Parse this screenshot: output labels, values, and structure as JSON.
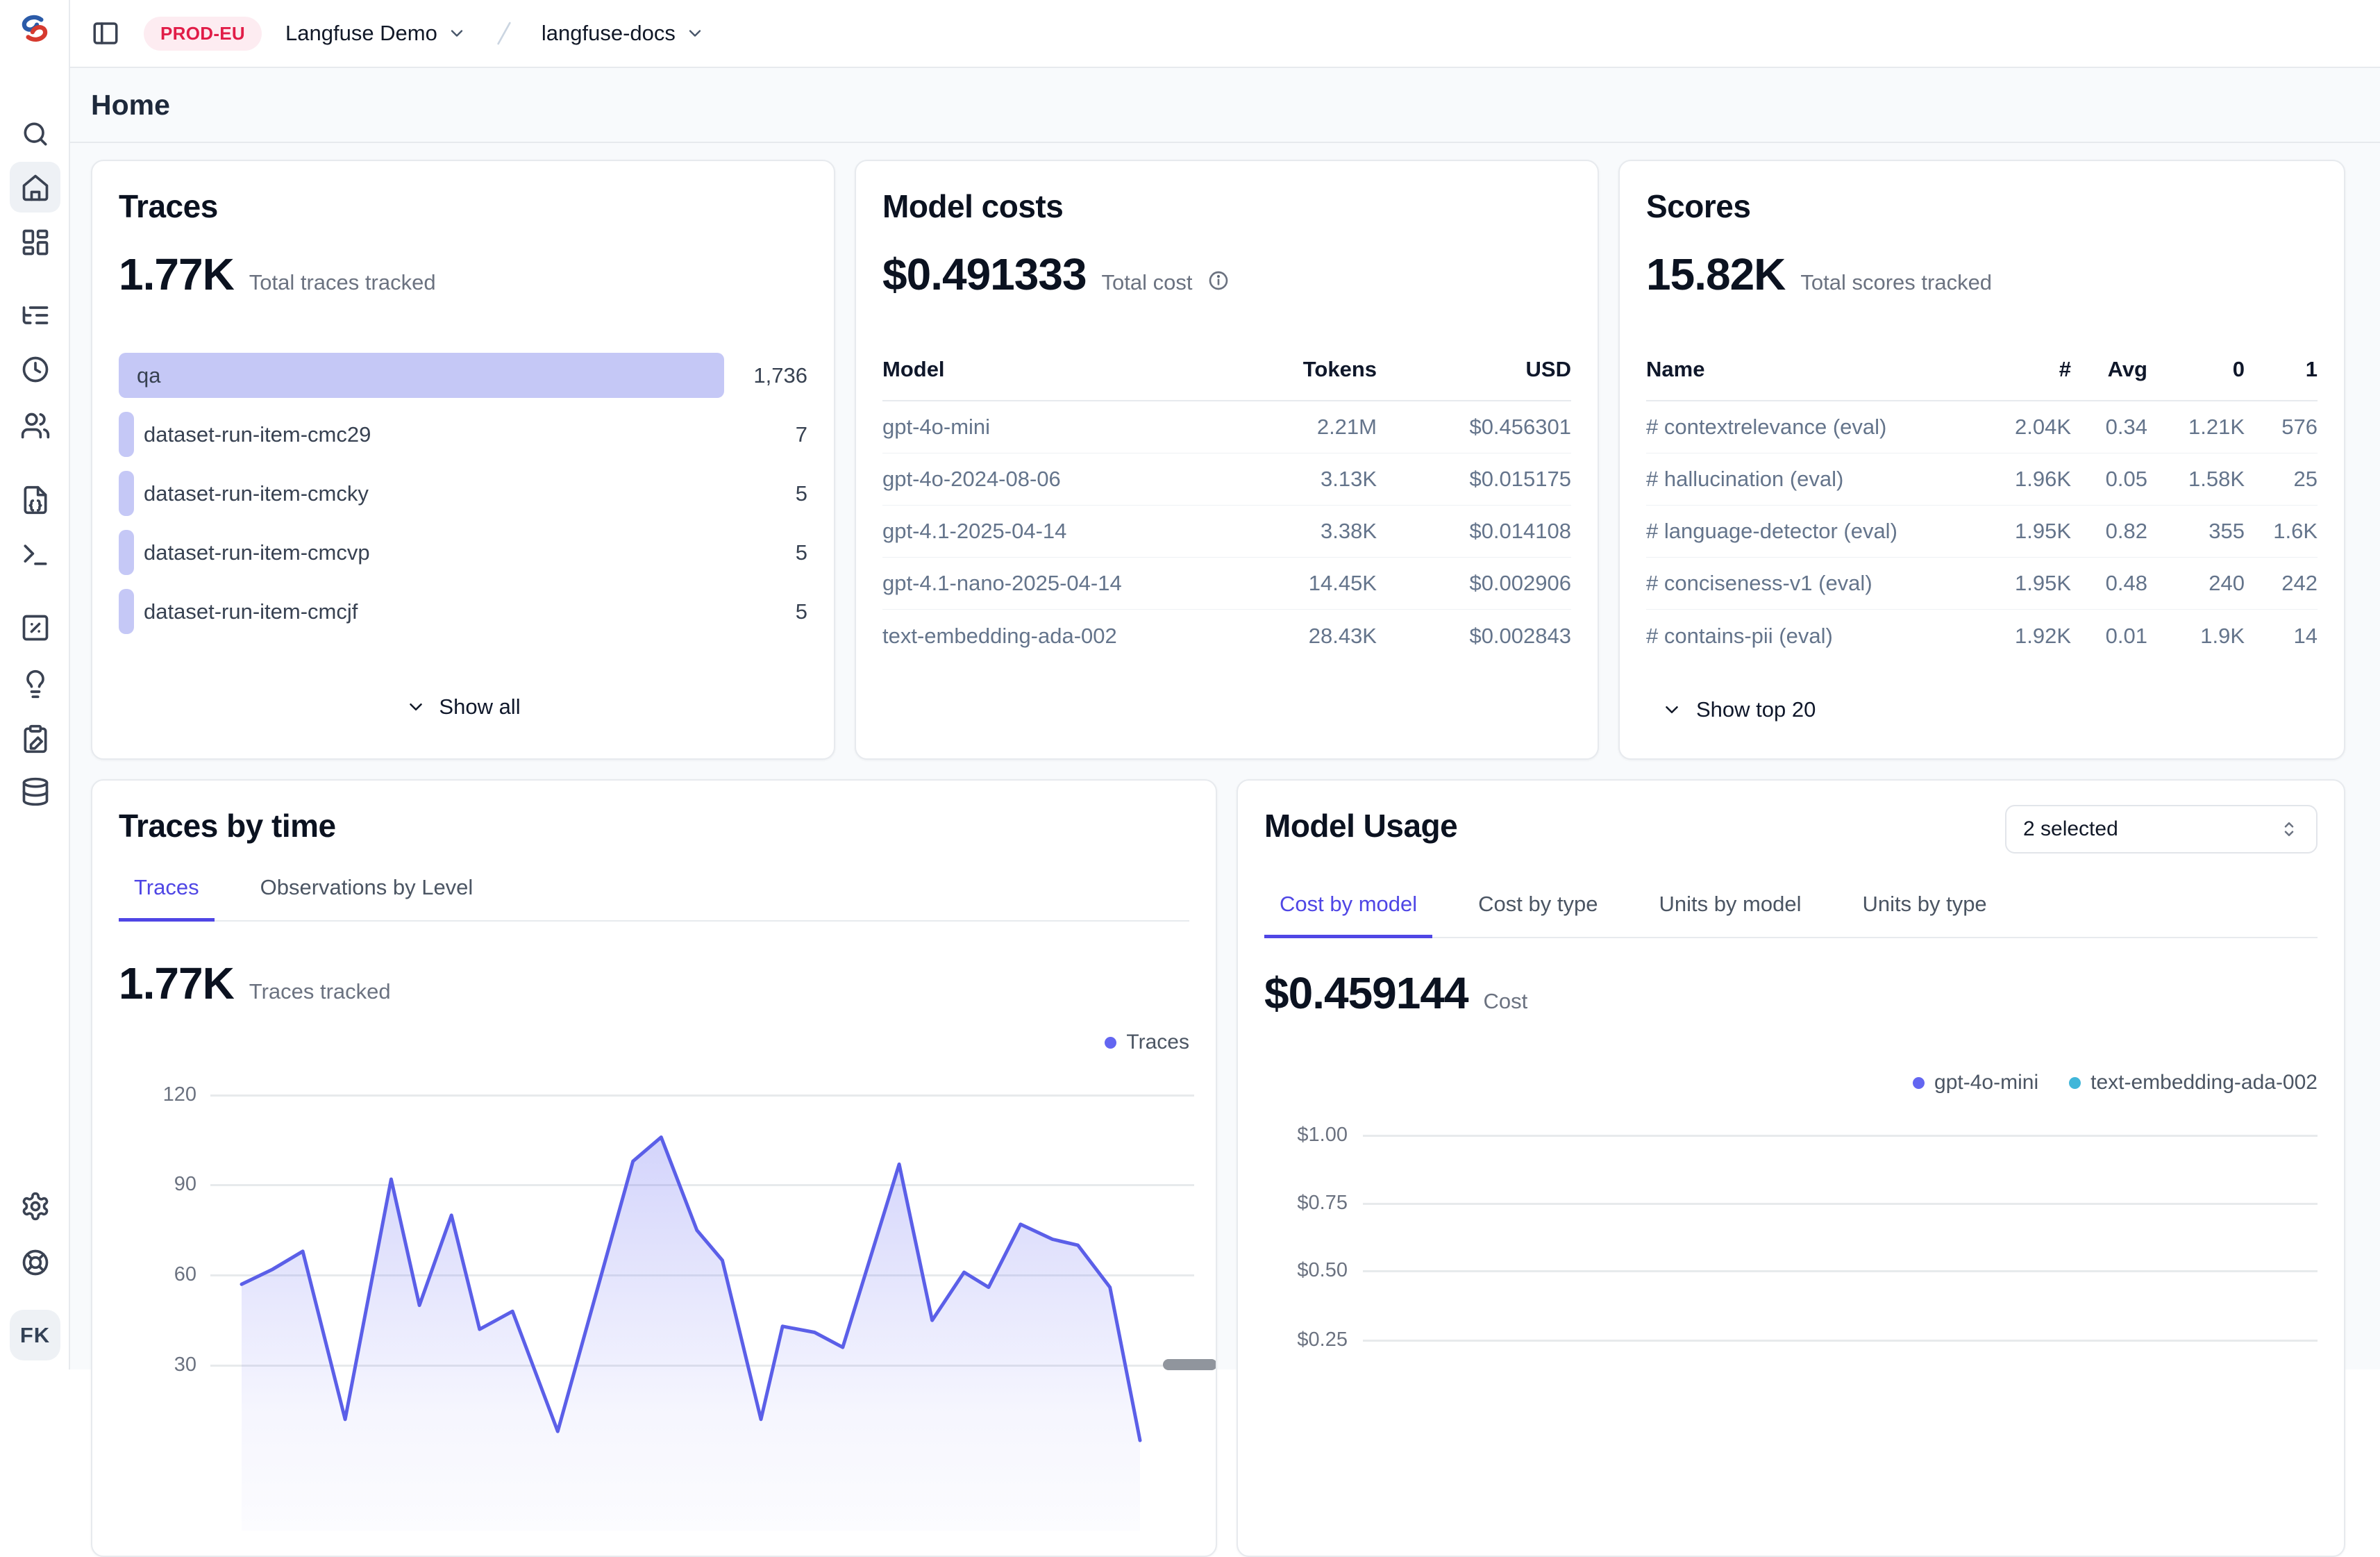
{
  "topbar": {
    "env_badge": "PROD-EU",
    "org_name": "Langfuse Demo",
    "project_name": "langfuse-docs"
  },
  "page": {
    "title": "Home"
  },
  "sidebar": {
    "avatar_initials": "FK",
    "icons": [
      "search",
      "home",
      "dashboards-grid",
      "trace-tree",
      "sessions-clock",
      "users",
      "prompts-file-code",
      "playground-terminal",
      "evaluation-square-percent",
      "annotation-lightbulb",
      "datasets-clipboard-pen",
      "database",
      "settings-gear",
      "support-lifebuoy"
    ]
  },
  "traces_card": {
    "title": "Traces",
    "stat": "1.77K",
    "stat_label": "Total traces tracked",
    "rows": [
      {
        "label": "qa",
        "value": "1,736",
        "width_pct": 100
      },
      {
        "label": "dataset-run-item-cmc29",
        "value": "7",
        "width_pct": 2.4
      },
      {
        "label": "dataset-run-item-cmcky",
        "value": "5",
        "width_pct": 2.4
      },
      {
        "label": "dataset-run-item-cmcvp",
        "value": "5",
        "width_pct": 2.4
      },
      {
        "label": "dataset-run-item-cmcjf",
        "value": "5",
        "width_pct": 2.4
      }
    ],
    "show_all_label": "Show all"
  },
  "model_costs_card": {
    "title": "Model costs",
    "stat": "$0.491333",
    "stat_label": "Total cost",
    "columns": [
      "Model",
      "Tokens",
      "USD"
    ],
    "rows": [
      [
        "gpt-4o-mini",
        "2.21M",
        "$0.456301"
      ],
      [
        "gpt-4o-2024-08-06",
        "3.13K",
        "$0.015175"
      ],
      [
        "gpt-4.1-2025-04-14",
        "3.38K",
        "$0.014108"
      ],
      [
        "gpt-4.1-nano-2025-04-14",
        "14.45K",
        "$0.002906"
      ],
      [
        "text-embedding-ada-002",
        "28.43K",
        "$0.002843"
      ]
    ]
  },
  "scores_card": {
    "title": "Scores",
    "stat": "15.82K",
    "stat_label": "Total scores tracked",
    "columns": [
      "Name",
      "#",
      "Avg",
      "0",
      "1"
    ],
    "rows": [
      [
        "# contextrelevance (eval)",
        "2.04K",
        "0.34",
        "1.21K",
        "576"
      ],
      [
        "# hallucination (eval)",
        "1.96K",
        "0.05",
        "1.58K",
        "25"
      ],
      [
        "# language-detector (eval)",
        "1.95K",
        "0.82",
        "355",
        "1.6K"
      ],
      [
        "# conciseness-v1 (eval)",
        "1.95K",
        "0.48",
        "240",
        "242"
      ],
      [
        "# contains-pii (eval)",
        "1.92K",
        "0.01",
        "1.9K",
        "14"
      ]
    ],
    "show_top_label": "Show top 20"
  },
  "traces_by_time_card": {
    "title": "Traces by time",
    "tabs": [
      "Traces",
      "Observations by Level"
    ],
    "active_tab": "Traces",
    "stat": "1.77K",
    "stat_label": "Traces tracked",
    "legend": [
      "Traces"
    ]
  },
  "model_usage_card": {
    "title": "Model Usage",
    "selector_label": "2 selected",
    "tabs": [
      "Cost by model",
      "Cost by type",
      "Units by model",
      "Units by type"
    ],
    "active_tab": "Cost by model",
    "stat": "$0.459144",
    "stat_label": "Cost",
    "legend": [
      "gpt-4o-mini",
      "text-embedding-ada-002"
    ]
  },
  "chart_data": [
    {
      "id": "traces-by-time",
      "type": "area",
      "title": "Traces by time",
      "series": [
        {
          "name": "Traces",
          "color": "#6366f1"
        }
      ],
      "y_ticks": [
        120,
        90,
        60,
        30
      ],
      "visible_y_range": [
        30,
        120
      ],
      "grid": true,
      "legend_position": "top-right",
      "points": [
        {
          "x": 0.0,
          "y": 57
        },
        {
          "x": 0.033,
          "y": 62
        },
        {
          "x": 0.065,
          "y": 68
        },
        {
          "x": 0.11,
          "y": 12
        },
        {
          "x": 0.159,
          "y": 92
        },
        {
          "x": 0.189,
          "y": 50
        },
        {
          "x": 0.223,
          "y": 80
        },
        {
          "x": 0.253,
          "y": 42
        },
        {
          "x": 0.288,
          "y": 48
        },
        {
          "x": 0.336,
          "y": 8
        },
        {
          "x": 0.416,
          "y": 98
        },
        {
          "x": 0.446,
          "y": 106
        },
        {
          "x": 0.484,
          "y": 75
        },
        {
          "x": 0.511,
          "y": 65
        },
        {
          "x": 0.552,
          "y": 12
        },
        {
          "x": 0.575,
          "y": 43
        },
        {
          "x": 0.609,
          "y": 41
        },
        {
          "x": 0.639,
          "y": 36
        },
        {
          "x": 0.699,
          "y": 97
        },
        {
          "x": 0.734,
          "y": 45
        },
        {
          "x": 0.768,
          "y": 61
        },
        {
          "x": 0.794,
          "y": 56
        },
        {
          "x": 0.828,
          "y": 77
        },
        {
          "x": 0.862,
          "y": 72
        },
        {
          "x": 0.889,
          "y": 70
        },
        {
          "x": 0.923,
          "y": 56
        },
        {
          "x": 0.955,
          "y": 5
        }
      ]
    },
    {
      "id": "model-usage-cost-by-model",
      "type": "line",
      "title": "Model Usage - Cost by model",
      "series": [
        {
          "name": "gpt-4o-mini",
          "color": "#6366f1"
        },
        {
          "name": "text-embedding-ada-002",
          "color": "#41b6d9"
        }
      ],
      "y_tick_labels": [
        "$1.00",
        "$0.75",
        "$0.50",
        "$0.25"
      ],
      "grid": true,
      "legend_position": "top-right",
      "series_values_visible": false
    }
  ],
  "colors": {
    "accent_indigo": "#4f46e5",
    "bar_fill": "#c5c8f6",
    "legend_purple": "#6366f1",
    "legend_cyan": "#41b6d9",
    "badge_bg": "#fdecf1",
    "badge_text": "#e11d48"
  }
}
